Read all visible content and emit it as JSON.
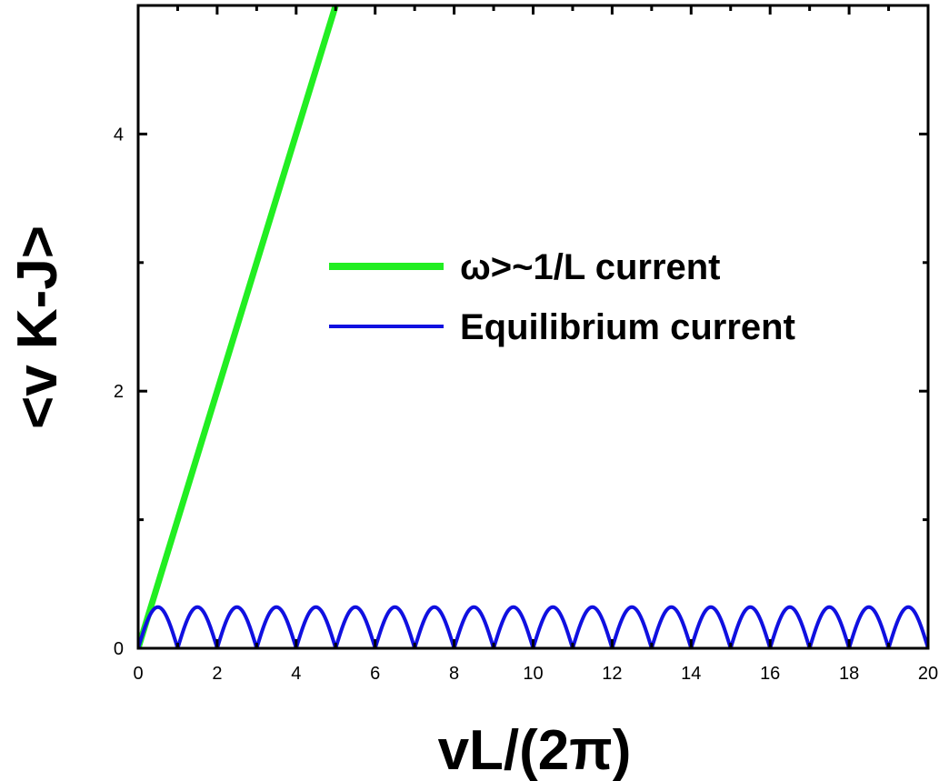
{
  "chart_data": {
    "type": "line",
    "xlabel": "vL/(2π)",
    "ylabel": "<v K-J>",
    "xlim": [
      0,
      20
    ],
    "ylim": [
      0,
      5
    ],
    "xticks": [
      0,
      2,
      4,
      6,
      8,
      10,
      12,
      14,
      16,
      18,
      20
    ],
    "yticks": [
      0,
      2,
      4
    ],
    "legend_placement": "center-right",
    "grid": false,
    "series": [
      {
        "name": "ω>~1/L current",
        "color": "#22ee22",
        "x": [
          0,
          5
        ],
        "y": [
          0,
          5
        ]
      },
      {
        "name": "Equilibrium current",
        "color": "#1010e0",
        "function": "abs_sin_pi_x",
        "amplitude": 0.32,
        "x": [
          0,
          20
        ],
        "y": [
          0,
          0
        ]
      }
    ]
  }
}
